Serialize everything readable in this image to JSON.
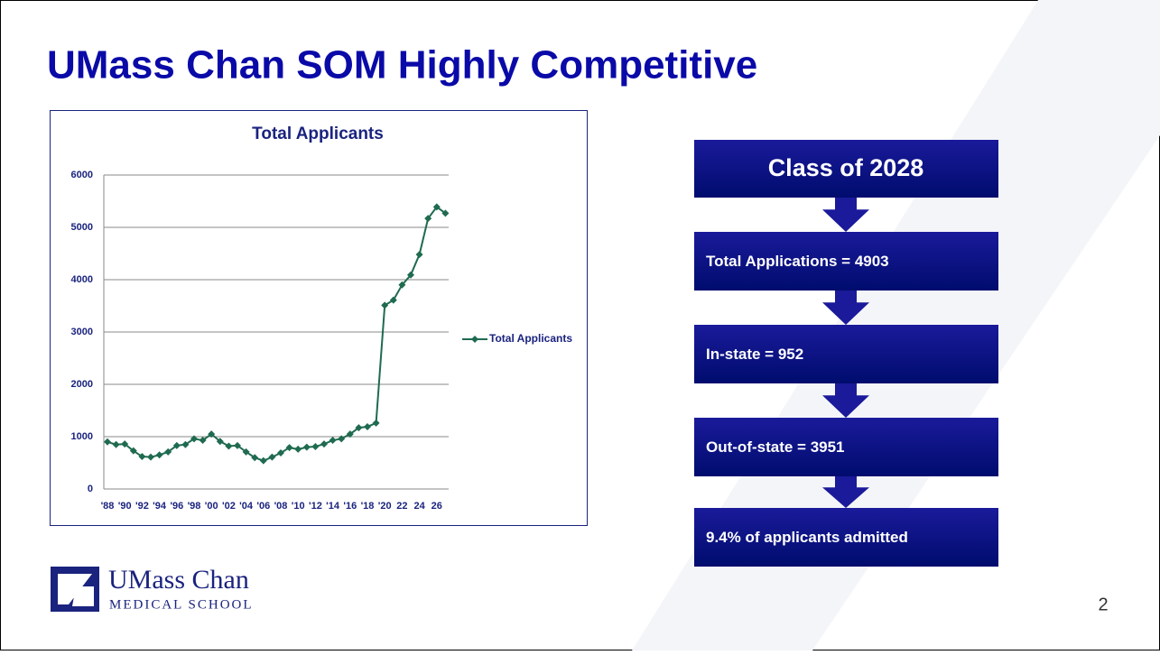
{
  "slide": {
    "title": "UMass Chan SOM Highly Competitive",
    "page_number": "2",
    "logo": {
      "name": "UMass Chan",
      "subtitle": "MEDICAL SCHOOL"
    },
    "flow": [
      {
        "text": "Class of 2028"
      },
      {
        "text": "Total Applications = 4903"
      },
      {
        "text": "In-state = 952"
      },
      {
        "text": "Out-of-state = 3951"
      },
      {
        "text": "9.4% of applicants admitted"
      }
    ]
  },
  "chart_data": {
    "type": "line",
    "title": "Total Applicants",
    "categories": [
      "'88",
      null,
      "'90",
      null,
      "'92",
      null,
      "'94",
      null,
      "'96",
      null,
      "'98",
      null,
      "'00",
      null,
      "'02",
      null,
      "'04",
      null,
      "'06",
      null,
      "'08",
      null,
      "'10",
      null,
      "'12",
      null,
      "'14",
      null,
      "'16",
      null,
      "'18",
      null,
      "'20",
      null,
      "22",
      null,
      "24",
      null,
      "26",
      null
    ],
    "series": [
      {
        "name": "Total Applicants",
        "color": "#1f6b4f",
        "values": [
          900,
          850,
          860,
          730,
          620,
          610,
          650,
          710,
          830,
          850,
          960,
          930,
          1050,
          910,
          820,
          830,
          710,
          600,
          540,
          610,
          690,
          790,
          760,
          800,
          810,
          860,
          930,
          960,
          1050,
          1170,
          1190,
          1260,
          3510,
          3610,
          3900,
          4090,
          4480,
          5170,
          5390,
          5270
        ]
      }
    ],
    "ylim": [
      0,
      6000
    ],
    "yticks": [
      0,
      1000,
      2000,
      3000,
      4000,
      5000,
      6000
    ],
    "grid": true,
    "legend": "right"
  }
}
